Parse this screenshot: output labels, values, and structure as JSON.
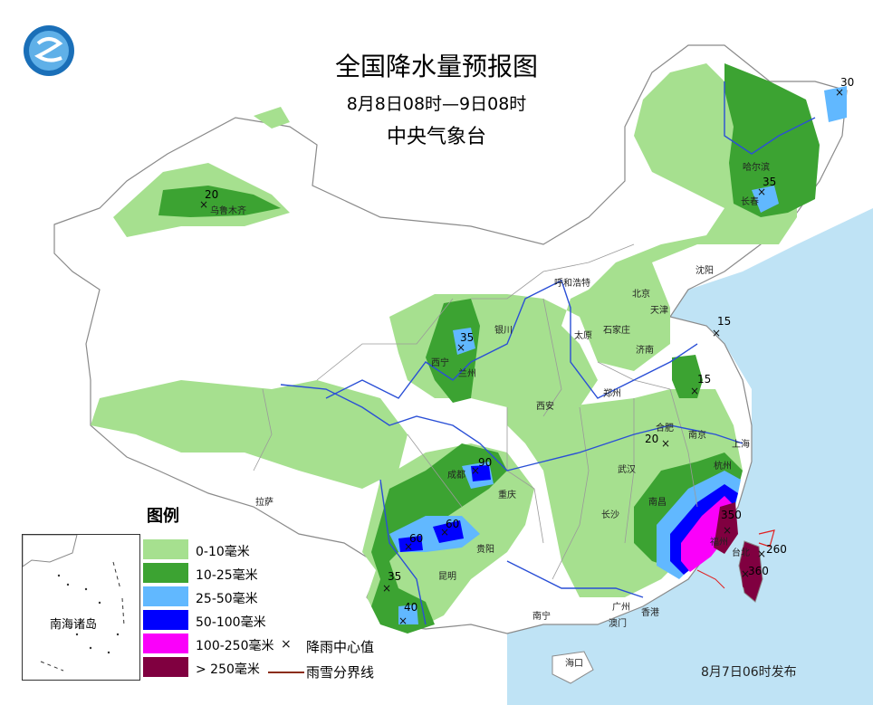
{
  "map": {
    "title": "全国降水量预报图",
    "subtitle": "8月8日08时—9日08时",
    "issuer": "中央气象台",
    "issue_date": "8月7日06时发布",
    "inset_label": "南海诸岛",
    "colors": {
      "sea": "#bfe3f5",
      "land": "#ffffff",
      "border": "#8a8a8a",
      "river": "#2a4fd6"
    },
    "legend": {
      "title": "图例",
      "items": [
        {
          "label": "0-10毫米",
          "color": "#a6e08f"
        },
        {
          "label": "10-25毫米",
          "color": "#3ca332"
        },
        {
          "label": "25-50毫米",
          "color": "#61b8ff"
        },
        {
          "label": "50-100毫米",
          "color": "#0000fe"
        },
        {
          "label": "100-250毫米",
          "color": "#fa00fa"
        },
        {
          "label": "> 250毫米",
          "color": "#800040"
        }
      ],
      "center_label": "降雨中心值",
      "snow_line_label": "雨雪分界线"
    },
    "cities": [
      "乌鲁木齐",
      "哈尔滨",
      "长春",
      "沈阳",
      "呼和浩特",
      "北京",
      "天津",
      "石家庄",
      "太原",
      "济南",
      "银川",
      "西宁",
      "兰州",
      "郑州",
      "西安",
      "合肥",
      "南京",
      "上海",
      "杭州",
      "武汉",
      "成都",
      "重庆",
      "拉萨",
      "南昌",
      "长沙",
      "贵阳",
      "昆明",
      "福州",
      "台北",
      "广州",
      "南宁",
      "香港",
      "澳门",
      "海口"
    ],
    "values": [
      "30",
      "20",
      "35",
      "15",
      "15",
      "35",
      "20",
      "90",
      "60",
      "60",
      "35",
      "40",
      "350",
      "260",
      "360"
    ]
  }
}
